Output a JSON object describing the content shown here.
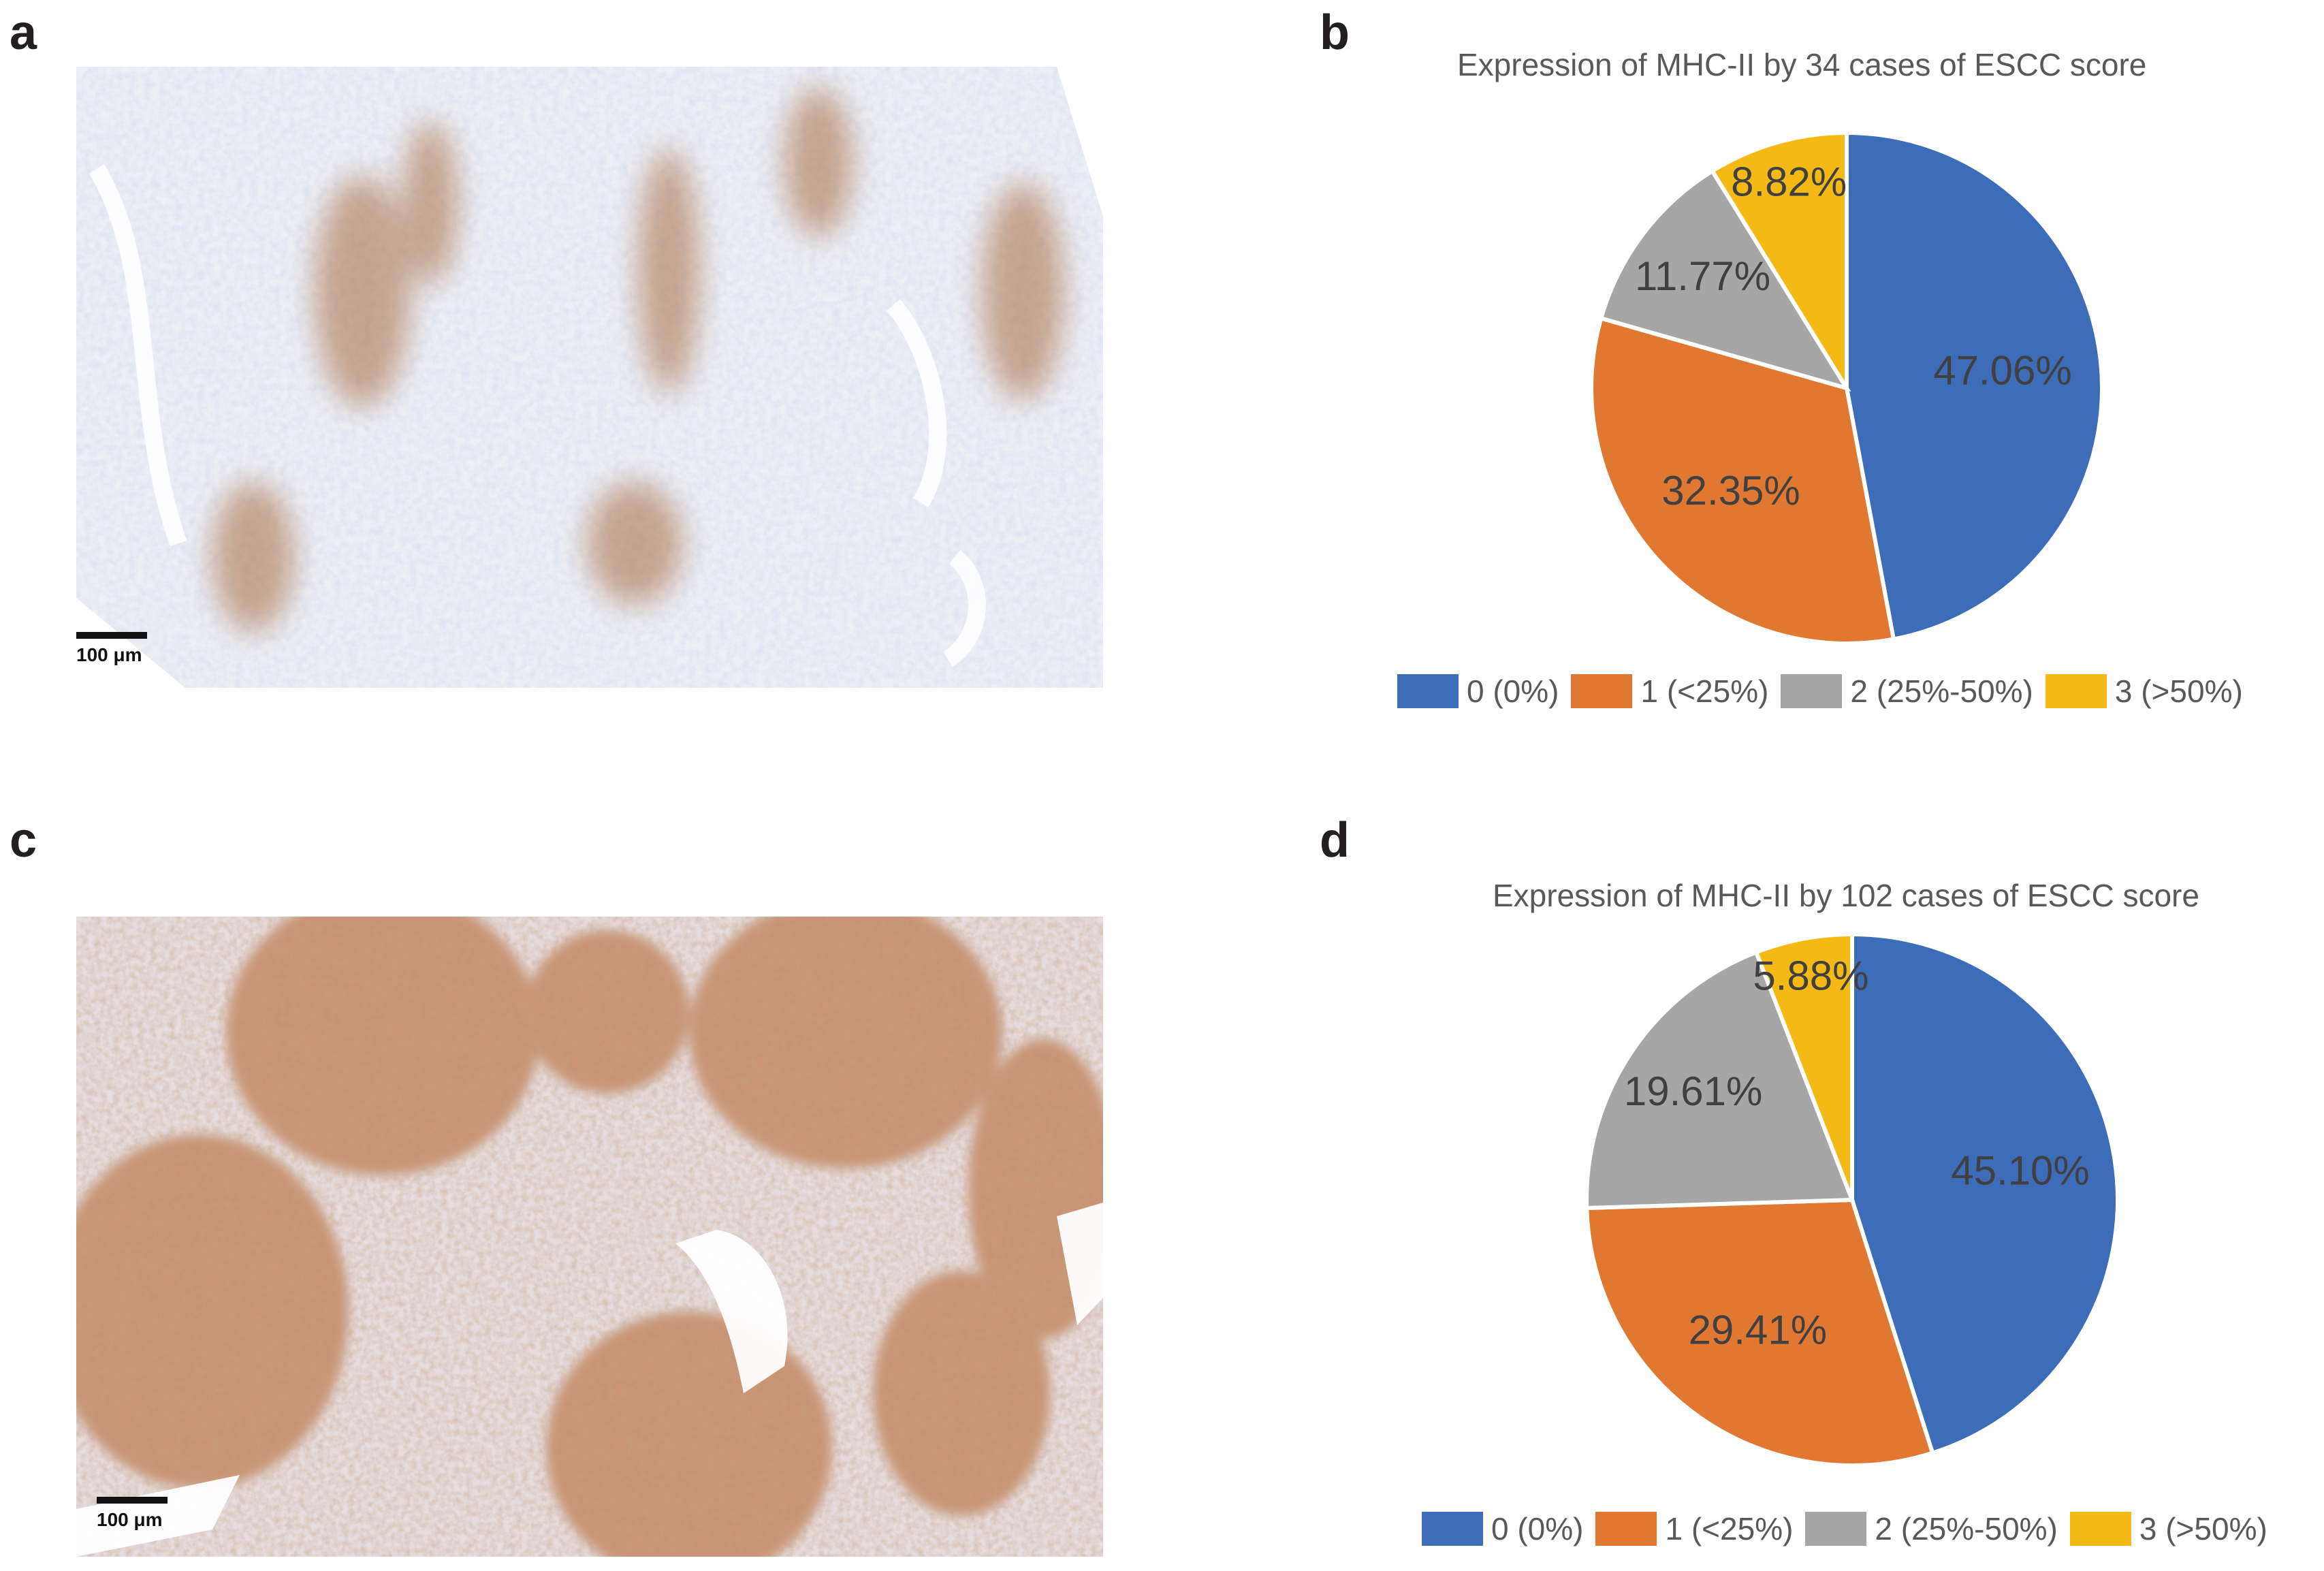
{
  "panels": {
    "a": {
      "letter": "a",
      "scalebar": "100 μm",
      "image": "IHC micrograph, weak brown MHC-II staining in stromal regions"
    },
    "b": {
      "letter": "b"
    },
    "c": {
      "letter": "c",
      "scalebar": "100 μm",
      "image": "IHC micrograph, strong brown MHC-II staining in tumor nests"
    },
    "d": {
      "letter": "d"
    }
  },
  "colors": {
    "score0": "#3d6cb8",
    "score1": "#e07832",
    "score2": "#a6a6a6",
    "score3": "#f4b914"
  },
  "chart_data": [
    {
      "type": "pie",
      "title": "Expression of MHC-II by 34 cases of ESCC score",
      "categories": [
        "0 (0%)",
        "1 (<25%)",
        "2 (25%-50%)",
        "3 (>50%)"
      ],
      "values": [
        47.06,
        32.35,
        11.77,
        8.82
      ],
      "labels": [
        "47.06%",
        "32.35%",
        "11.77%",
        "8.82%"
      ],
      "legend": "bottom"
    },
    {
      "type": "pie",
      "title": "Expression of MHC-II by 102 cases of ESCC score",
      "categories": [
        "0 (0%)",
        "1 (<25%)",
        "2 (25%-50%)",
        "3 (>50%)"
      ],
      "values": [
        45.1,
        29.41,
        19.61,
        5.88
      ],
      "labels": [
        "45.10%",
        "29.41%",
        "19.61%",
        "5.88%"
      ],
      "legend": "bottom"
    }
  ]
}
